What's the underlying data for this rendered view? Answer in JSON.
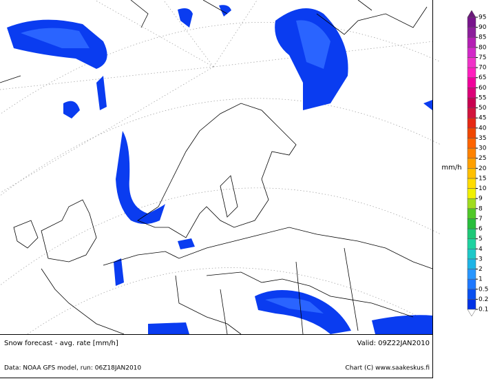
{
  "footer": {
    "title": "Snow forecast - avg. rate [mm/h]",
    "valid": "Valid: 09Z22JAN2010",
    "source": "Data: NOAA GFS model, run: 06Z18JAN2010",
    "credit": "Chart (C) www.saakeskus.fi"
  },
  "legend": {
    "unit": "mm/h",
    "levels": [
      0.1,
      0.2,
      0.5,
      1,
      2,
      3,
      4,
      5,
      6,
      7,
      8,
      9,
      10,
      15,
      20,
      25,
      30,
      35,
      40,
      45,
      50,
      55,
      60,
      65,
      70,
      75,
      80,
      85,
      90,
      95
    ],
    "under_color": "#ffffff",
    "over_color": "#6a1a7a",
    "colors": [
      "#0032e6",
      "#0a50f0",
      "#1e78ff",
      "#2896ff",
      "#1eb4e6",
      "#1ec8c8",
      "#1ed2a0",
      "#1ec878",
      "#28be3c",
      "#50c828",
      "#a0dc1e",
      "#f0f000",
      "#ffdc00",
      "#ffc000",
      "#ffa000",
      "#ff8200",
      "#ff6400",
      "#f04600",
      "#e62814",
      "#d2143c",
      "#c80050",
      "#dc0078",
      "#f0009b",
      "#ff1ebe",
      "#f032c8",
      "#d228c8",
      "#b41eb4",
      "#8c1e9b",
      "#78148c"
    ]
  }
}
